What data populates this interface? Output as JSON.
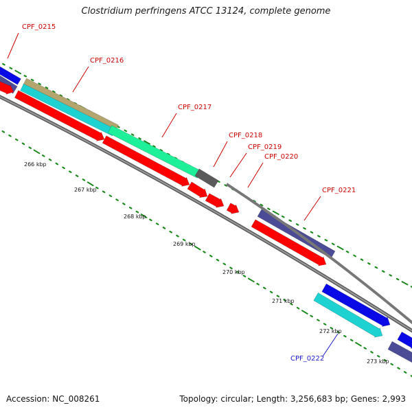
{
  "title": "Clostridium perfringens ATCC 13124, complete genome",
  "footer": {
    "accession": "Accession: NC_008261",
    "topology": "Topology: circular; Length: 3,256,683 bp; Genes: 2,993"
  },
  "colors": {
    "background": "#ffffff",
    "backbone": "#777777",
    "tick": "#1d8a1d",
    "label_red": "#cc0000",
    "label_blue": "#1a1acc",
    "feature_red": "#ff0000",
    "feature_blue": "#0a0ae6",
    "feature_slate": "#4c4c96",
    "feature_olive": "#b4a56e",
    "feature_cyan": "#1ed2d2",
    "feature_green": "#1ef09a",
    "feature_gray": "#5a5a5a"
  },
  "scale": {
    "unit": "kbp",
    "ticks": [
      "266 kbp",
      "267 kbp",
      "268 kbp",
      "269 kbp",
      "270 kbp",
      "271 kbp",
      "272 kbp",
      "273 kbp"
    ]
  },
  "genes": [
    {
      "name": "CPF_0215",
      "label_color": "red"
    },
    {
      "name": "CPF_0216",
      "label_color": "red"
    },
    {
      "name": "CPF_0217",
      "label_color": "red"
    },
    {
      "name": "CPF_0218",
      "label_color": "red"
    },
    {
      "name": "CPF_0219",
      "label_color": "red"
    },
    {
      "name": "CPF_0220",
      "label_color": "red"
    },
    {
      "name": "CPF_0221",
      "label_color": "red"
    },
    {
      "name": "CPF_0222",
      "label_color": "blue"
    }
  ]
}
